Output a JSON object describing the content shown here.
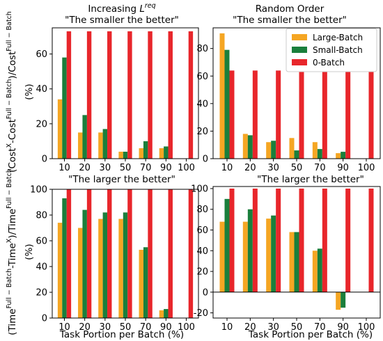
{
  "figure": {
    "y_label_top": "(Cost^X-Cost^Full−Batch)/Cost^Full−Batch (%)",
    "y_label_bottom": "(Time^Full−Batch-Time^X)/Time^Full−Batch (%)",
    "x_label": "Task Portion per Batch (%)"
  },
  "legend": {
    "items": [
      "Large-Batch",
      "Small-Batch",
      "0-Batch"
    ],
    "colors": [
      "#f5a623",
      "#1a7f3c",
      "#e8262b"
    ]
  },
  "chart_data": [
    {
      "type": "bar",
      "title_line1": "Increasing L^req",
      "title_line2": "\"The smaller the better\"",
      "categories": [
        "10",
        "20",
        "30",
        "50",
        "70",
        "90",
        "100"
      ],
      "ylim": [
        0,
        75
      ],
      "yticks": [
        0,
        20,
        40,
        60
      ],
      "series": [
        {
          "name": "Large-Batch",
          "values": [
            34,
            15,
            15,
            4,
            6,
            6,
            0
          ]
        },
        {
          "name": "Small-Batch",
          "values": [
            58,
            25,
            17,
            4,
            10,
            7,
            0
          ]
        },
        {
          "name": "0-Batch",
          "values": [
            73,
            73,
            73,
            73,
            73,
            73,
            73
          ]
        }
      ]
    },
    {
      "type": "bar",
      "title_line1": "Random Order",
      "title_line2": "\"The smaller the better\"",
      "categories": [
        "10",
        "20",
        "30",
        "50",
        "70",
        "90",
        "100"
      ],
      "ylim": [
        0,
        95
      ],
      "yticks": [
        0,
        20,
        40,
        60,
        80
      ],
      "legend": "top-right",
      "series": [
        {
          "name": "Large-Batch",
          "values": [
            91,
            18,
            12,
            15,
            12,
            4,
            0
          ]
        },
        {
          "name": "Small-Batch",
          "values": [
            79,
            17,
            13,
            6,
            7,
            5,
            0
          ]
        },
        {
          "name": "0-Batch",
          "values": [
            64,
            64,
            64,
            64,
            64,
            64,
            64
          ]
        }
      ]
    },
    {
      "type": "bar",
      "title_line1": "",
      "title_line2": "\"The larger the better\"",
      "categories": [
        "10",
        "20",
        "30",
        "50",
        "70",
        "90",
        "100"
      ],
      "ylim": [
        0,
        100
      ],
      "yticks": [
        0,
        20,
        40,
        60,
        80,
        100
      ],
      "series": [
        {
          "name": "Large-Batch",
          "values": [
            74,
            70,
            77,
            77,
            53,
            6,
            0
          ]
        },
        {
          "name": "Small-Batch",
          "values": [
            93,
            84,
            82,
            82,
            55,
            7,
            0
          ]
        },
        {
          "name": "0-Batch",
          "values": [
            100,
            100,
            100,
            100,
            100,
            100,
            100
          ]
        }
      ]
    },
    {
      "type": "bar",
      "title_line1": "",
      "title_line2": "\"The larger the better\"",
      "categories": [
        "10",
        "20",
        "30",
        "50",
        "70",
        "90",
        "100"
      ],
      "ylim": [
        -25,
        102
      ],
      "yticks": [
        -20,
        0,
        20,
        40,
        60,
        80,
        100
      ],
      "zero_line": true,
      "series": [
        {
          "name": "Large-Batch",
          "values": [
            68,
            68,
            71,
            58,
            40,
            -17,
            0
          ]
        },
        {
          "name": "Small-Batch",
          "values": [
            90,
            80,
            74,
            58,
            42,
            -15,
            0
          ]
        },
        {
          "name": "0-Batch",
          "values": [
            100,
            100,
            100,
            100,
            100,
            100,
            100
          ]
        }
      ]
    }
  ]
}
